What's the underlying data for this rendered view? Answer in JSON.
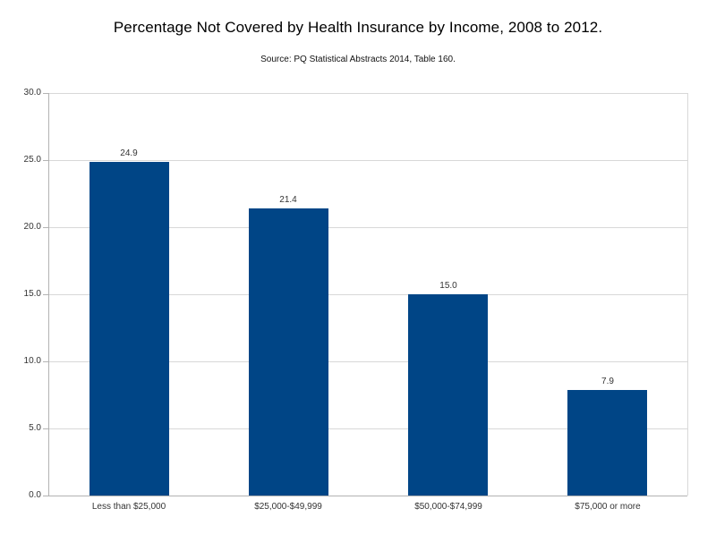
{
  "chart_data": {
    "type": "bar",
    "title": "Percentage Not Covered by Health Insurance by Income, 2008 to 2012.",
    "subtitle": "Source: PQ Statistical Abstracts 2014, Table 160.",
    "categories": [
      "Less than $25,000",
      "$25,000-$49,999",
      "$50,000-$74,999",
      "$75,000 or more"
    ],
    "values": [
      24.9,
      21.4,
      15.0,
      7.9
    ],
    "data_labels": [
      "24.9",
      "21.4",
      "15.0",
      "7.9"
    ],
    "xlabel": "",
    "ylabel": "",
    "ylim": [
      0,
      30
    ],
    "ytick_step": 5,
    "ytick_labels": [
      "0.0",
      "5.0",
      "10.0",
      "15.0",
      "20.0",
      "25.0",
      "30.0"
    ],
    "grid": true,
    "legend_position": "none",
    "bar_color": "#004586",
    "grid_color": "#d8d8d8",
    "axis_color": "#b3b3b3"
  }
}
